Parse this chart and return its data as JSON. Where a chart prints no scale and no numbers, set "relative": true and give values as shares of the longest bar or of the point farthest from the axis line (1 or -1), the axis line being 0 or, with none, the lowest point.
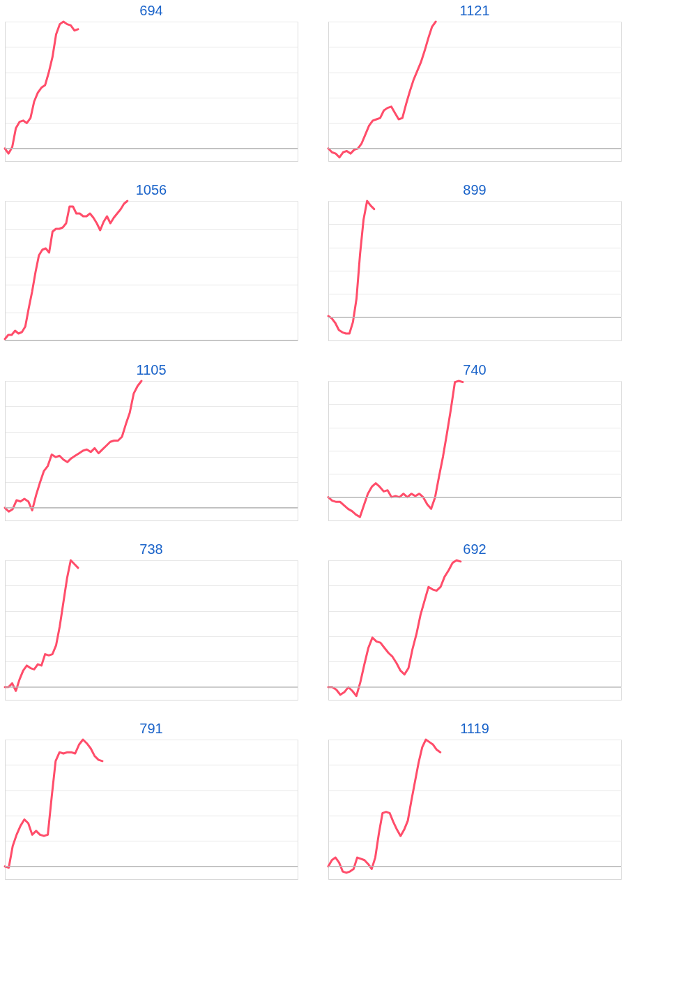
{
  "chart_data": [
    {
      "type": "line",
      "title": "694",
      "relative": true,
      "grid": "y",
      "color": "#ff4d6a",
      "ref_lines": [
        {
          "axis": "y",
          "value": 0,
          "color": "#bbbbbb"
        }
      ],
      "categories": [
        null,
        null,
        null,
        null,
        null,
        null,
        null,
        null,
        null,
        null,
        null,
        null,
        null,
        null,
        null,
        null,
        null,
        null,
        null,
        null,
        null,
        null,
        null,
        null,
        null,
        null,
        null,
        null,
        null,
        null,
        null,
        null,
        null,
        null,
        null,
        null,
        null,
        null,
        null,
        null,
        null,
        null,
        null,
        null,
        null,
        null,
        null,
        null,
        null,
        null,
        null,
        null,
        null,
        null,
        null,
        null,
        null,
        null,
        null,
        null,
        null,
        null,
        null,
        null,
        null,
        null,
        null,
        null,
        null,
        null,
        null,
        null,
        null,
        null,
        null,
        null,
        null,
        null,
        null,
        null,
        null
      ],
      "values": [
        0,
        -0.04,
        0.01,
        0.16,
        0.21,
        0.22,
        0.2,
        0.24,
        0.37,
        0.44,
        0.48,
        0.5,
        0.6,
        0.72,
        0.9,
        0.98,
        1,
        0.98,
        0.97,
        0.93,
        0.94,
        null,
        null,
        null,
        null,
        null,
        null,
        null,
        null,
        null,
        null,
        null,
        null,
        null,
        null,
        null,
        null,
        null,
        null,
        null,
        null,
        null,
        null,
        null,
        null,
        null,
        null,
        null,
        null,
        null,
        null,
        null,
        null,
        null,
        null,
        null,
        null,
        null,
        null,
        null,
        null,
        null,
        null,
        null,
        null,
        null,
        null,
        null,
        null,
        null,
        null,
        null,
        null,
        null,
        null,
        null,
        null,
        null,
        null,
        null,
        null
      ]
    },
    {
      "type": "line",
      "title": "1121",
      "relative": true,
      "grid": "y",
      "color": "#ff4d6a",
      "ref_lines": [
        {
          "axis": "y",
          "value": 0,
          "color": "#bbbbbb"
        }
      ],
      "categories": [
        null,
        null,
        null,
        null,
        null,
        null,
        null,
        null,
        null,
        null,
        null,
        null,
        null,
        null,
        null,
        null,
        null,
        null,
        null,
        null,
        null,
        null,
        null,
        null,
        null,
        null,
        null,
        null,
        null,
        null,
        null,
        null,
        null,
        null,
        null,
        null,
        null,
        null,
        null,
        null,
        null,
        null,
        null,
        null,
        null,
        null,
        null,
        null,
        null,
        null,
        null,
        null,
        null,
        null,
        null,
        null,
        null,
        null,
        null,
        null,
        null,
        null,
        null,
        null,
        null,
        null,
        null,
        null,
        null,
        null,
        null,
        null,
        null,
        null,
        null,
        null,
        null,
        null,
        null,
        null
      ],
      "values": [
        0,
        -0.03,
        -0.04,
        -0.07,
        -0.03,
        -0.02,
        -0.04,
        -0.01,
        0,
        0.04,
        0.11,
        0.18,
        0.22,
        0.23,
        0.24,
        0.3,
        0.32,
        0.33,
        0.28,
        0.23,
        0.24,
        0.35,
        0.45,
        0.54,
        0.61,
        0.68,
        0.77,
        0.87,
        0.96,
        1,
        null,
        null,
        null,
        null,
        null,
        null,
        null,
        null,
        null,
        null,
        null,
        null,
        null,
        null,
        null,
        null,
        null,
        null,
        null,
        null,
        null,
        null,
        null,
        null,
        null,
        null,
        null,
        null,
        null,
        null,
        null,
        null,
        null,
        null,
        null,
        null,
        null,
        null,
        null,
        null,
        null,
        null,
        null,
        null,
        null,
        null,
        null,
        null,
        null,
        null
      ]
    },
    {
      "type": "line",
      "title": "1056",
      "relative": true,
      "grid": "y",
      "color": "#ff4d6a",
      "ref_lines": [
        {
          "axis": "y",
          "value": 0,
          "color": "#bbbbbb"
        }
      ],
      "categories": [
        null,
        null,
        null,
        null,
        null,
        null,
        null,
        null,
        null,
        null,
        null,
        null,
        null,
        null,
        null,
        null,
        null,
        null,
        null,
        null,
        null,
        null,
        null,
        null,
        null,
        null,
        null,
        null,
        null,
        null,
        null,
        null,
        null,
        null,
        null,
        null,
        null,
        null,
        null,
        null,
        null,
        null,
        null,
        null,
        null,
        null,
        null,
        null,
        null,
        null,
        null,
        null,
        null,
        null,
        null,
        null,
        null,
        null,
        null,
        null,
        null,
        null,
        null,
        null,
        null,
        null,
        null,
        null,
        null,
        null,
        null,
        null,
        null,
        null,
        null,
        null,
        null,
        null,
        null,
        null,
        null,
        null,
        null,
        null,
        null,
        null,
        null
      ],
      "values": [
        0.01,
        0.04,
        0.04,
        0.07,
        0.05,
        0.06,
        0.1,
        0.23,
        0.35,
        0.49,
        0.61,
        0.65,
        0.66,
        0.63,
        0.78,
        0.8,
        0.8,
        0.81,
        0.84,
        0.96,
        0.96,
        0.91,
        0.91,
        0.89,
        0.89,
        0.91,
        0.88,
        0.84,
        0.79,
        0.85,
        0.89,
        0.84,
        0.88,
        0.91,
        0.94,
        0.98,
        1,
        null,
        null,
        null,
        null,
        null,
        null,
        null,
        null,
        null,
        null,
        null,
        null,
        null,
        null,
        null,
        null,
        null,
        null,
        null,
        null,
        null,
        null,
        null,
        null,
        null,
        null,
        null,
        null,
        null,
        null,
        null,
        null,
        null,
        null,
        null,
        null,
        null,
        null,
        null,
        null,
        null,
        null,
        null,
        null,
        null,
        null,
        null,
        null,
        null,
        null
      ]
    },
    {
      "type": "line",
      "title": "899",
      "relative": true,
      "grid": "y",
      "color": "#ff4d6a",
      "ref_lines": [
        {
          "axis": "y",
          "value": 0,
          "color": "#bbbbbb"
        }
      ],
      "categories": [
        null,
        null,
        null,
        null,
        null,
        null,
        null,
        null,
        null,
        null,
        null,
        null,
        null,
        null,
        null,
        null,
        null,
        null,
        null,
        null,
        null,
        null,
        null,
        null,
        null,
        null,
        null,
        null,
        null,
        null,
        null,
        null,
        null,
        null,
        null,
        null,
        null,
        null,
        null,
        null,
        null,
        null,
        null,
        null,
        null,
        null,
        null,
        null,
        null,
        null,
        null,
        null,
        null,
        null,
        null,
        null,
        null,
        null,
        null,
        null,
        null,
        null,
        null,
        null,
        null,
        null,
        null,
        null,
        null,
        null,
        null,
        null,
        null,
        null,
        null,
        null,
        null,
        null,
        null,
        null,
        null,
        null,
        null,
        null
      ],
      "values": [
        0.01,
        -0.01,
        -0.05,
        -0.11,
        -0.13,
        -0.14,
        -0.14,
        -0.04,
        0.16,
        0.54,
        0.84,
        1,
        0.96,
        0.93,
        null,
        null,
        null,
        null,
        null,
        null,
        null,
        null,
        null,
        null,
        null,
        null,
        null,
        null,
        null,
        null,
        null,
        null,
        null,
        null,
        null,
        null,
        null,
        null,
        null,
        null,
        null,
        null,
        null,
        null,
        null,
        null,
        null,
        null,
        null,
        null,
        null,
        null,
        null,
        null,
        null,
        null,
        null,
        null,
        null,
        null,
        null,
        null,
        null,
        null,
        null,
        null,
        null,
        null,
        null,
        null,
        null,
        null,
        null,
        null,
        null,
        null,
        null,
        null,
        null,
        null,
        null,
        null,
        null,
        null
      ]
    },
    {
      "type": "line",
      "title": "1105",
      "relative": true,
      "grid": "y",
      "color": "#ff4d6a",
      "ref_lines": [
        {
          "axis": "y",
          "value": 0,
          "color": "#bbbbbb"
        }
      ],
      "categories": [
        null,
        null,
        null,
        null,
        null,
        null,
        null,
        null,
        null,
        null,
        null,
        null,
        null,
        null,
        null,
        null,
        null,
        null,
        null,
        null,
        null,
        null,
        null,
        null,
        null,
        null,
        null,
        null,
        null,
        null,
        null,
        null,
        null,
        null,
        null,
        null,
        null,
        null,
        null,
        null,
        null,
        null,
        null,
        null,
        null,
        null,
        null,
        null,
        null,
        null,
        null,
        null,
        null,
        null,
        null,
        null,
        null,
        null,
        null,
        null,
        null,
        null,
        null,
        null,
        null,
        null,
        null,
        null,
        null,
        null,
        null,
        null,
        null,
        null,
        null,
        null
      ],
      "values": [
        0,
        -0.03,
        -0.01,
        0.06,
        0.05,
        0.07,
        0.05,
        -0.02,
        0.1,
        0.2,
        0.29,
        0.33,
        0.42,
        0.4,
        0.41,
        0.38,
        0.36,
        0.39,
        0.41,
        0.43,
        0.45,
        0.46,
        0.44,
        0.47,
        0.43,
        0.46,
        0.49,
        0.52,
        0.53,
        0.53,
        0.56,
        0.66,
        0.75,
        0.9,
        0.96,
        1,
        null,
        null,
        null,
        null,
        null,
        null,
        null,
        null,
        null,
        null,
        null,
        null,
        null,
        null,
        null,
        null,
        null,
        null,
        null,
        null,
        null,
        null,
        null,
        null,
        null,
        null,
        null,
        null,
        null,
        null,
        null,
        null,
        null,
        null,
        null,
        null,
        null,
        null,
        null,
        null
      ]
    },
    {
      "type": "line",
      "title": "740",
      "relative": true,
      "grid": "y",
      "color": "#ff4d6a",
      "ref_lines": [
        {
          "axis": "y",
          "value": 0,
          "color": "#bbbbbb"
        }
      ],
      "categories": [
        null,
        null,
        null,
        null,
        null,
        null,
        null,
        null,
        null,
        null,
        null,
        null,
        null,
        null,
        null,
        null,
        null,
        null,
        null,
        null,
        null,
        null,
        null,
        null,
        null,
        null,
        null,
        null,
        null,
        null,
        null,
        null,
        null,
        null,
        null,
        null,
        null,
        null,
        null,
        null,
        null,
        null,
        null,
        null,
        null,
        null,
        null,
        null,
        null,
        null,
        null,
        null,
        null,
        null,
        null,
        null,
        null,
        null,
        null,
        null,
        null,
        null,
        null,
        null,
        null,
        null,
        null,
        null,
        null,
        null,
        null,
        null,
        null,
        null,
        null
      ],
      "values": [
        0,
        -0.03,
        -0.04,
        -0.04,
        -0.07,
        -0.1,
        -0.12,
        -0.15,
        -0.17,
        -0.07,
        0.03,
        0.09,
        0.12,
        0.09,
        0.05,
        0.06,
        0,
        0.01,
        0,
        0.03,
        0,
        0.03,
        0.01,
        0.03,
        0,
        -0.06,
        -0.1,
        0,
        0.18,
        0.35,
        0.55,
        0.76,
        0.99,
        1,
        0.99,
        null,
        null,
        null,
        null,
        null,
        null,
        null,
        null,
        null,
        null,
        null,
        null,
        null,
        null,
        null,
        null,
        null,
        null,
        null,
        null,
        null,
        null,
        null,
        null,
        null,
        null,
        null,
        null,
        null,
        null,
        null,
        null,
        null,
        null,
        null,
        null,
        null,
        null,
        null,
        null
      ]
    },
    {
      "type": "line",
      "title": "738",
      "relative": true,
      "grid": "y",
      "color": "#ff4d6a",
      "ref_lines": [
        {
          "axis": "y",
          "value": 0,
          "color": "#bbbbbb"
        }
      ],
      "categories": [
        null,
        null,
        null,
        null,
        null,
        null,
        null,
        null,
        null,
        null,
        null,
        null,
        null,
        null,
        null,
        null,
        null,
        null,
        null,
        null,
        null,
        null,
        null,
        null,
        null,
        null,
        null,
        null,
        null,
        null,
        null,
        null,
        null,
        null,
        null,
        null,
        null,
        null,
        null,
        null,
        null,
        null,
        null,
        null,
        null,
        null,
        null,
        null,
        null,
        null,
        null,
        null,
        null,
        null,
        null,
        null,
        null,
        null,
        null,
        null,
        null,
        null,
        null,
        null,
        null,
        null,
        null,
        null,
        null,
        null,
        null,
        null,
        null,
        null,
        null,
        null,
        null,
        null,
        null,
        null,
        null
      ],
      "values": [
        0,
        0,
        0.03,
        -0.03,
        0.06,
        0.13,
        0.17,
        0.15,
        0.14,
        0.18,
        0.17,
        0.26,
        0.25,
        0.26,
        0.33,
        0.48,
        0.67,
        0.86,
        1,
        0.97,
        0.94,
        null,
        null,
        null,
        null,
        null,
        null,
        null,
        null,
        null,
        null,
        null,
        null,
        null,
        null,
        null,
        null,
        null,
        null,
        null,
        null,
        null,
        null,
        null,
        null,
        null,
        null,
        null,
        null,
        null,
        null,
        null,
        null,
        null,
        null,
        null,
        null,
        null,
        null,
        null,
        null,
        null,
        null,
        null,
        null,
        null,
        null,
        null,
        null,
        null,
        null,
        null,
        null,
        null,
        null,
        null,
        null,
        null,
        null,
        null,
        null
      ]
    },
    {
      "type": "line",
      "title": "692",
      "relative": true,
      "grid": "y",
      "color": "#ff4d6a",
      "ref_lines": [
        {
          "axis": "y",
          "value": 0,
          "color": "#bbbbbb"
        }
      ],
      "categories": [
        null,
        null,
        null,
        null,
        null,
        null,
        null,
        null,
        null,
        null,
        null,
        null,
        null,
        null,
        null,
        null,
        null,
        null,
        null,
        null,
        null,
        null,
        null,
        null,
        null,
        null,
        null,
        null,
        null,
        null,
        null,
        null,
        null,
        null,
        null,
        null,
        null,
        null,
        null,
        null,
        null,
        null,
        null,
        null,
        null,
        null,
        null,
        null,
        null,
        null,
        null,
        null,
        null,
        null,
        null,
        null,
        null,
        null,
        null,
        null,
        null,
        null,
        null,
        null,
        null,
        null,
        null,
        null,
        null,
        null,
        null,
        null,
        null,
        null
      ],
      "values": [
        0,
        0,
        -0.02,
        -0.06,
        -0.04,
        0,
        -0.03,
        -0.07,
        0.04,
        0.18,
        0.31,
        0.39,
        0.36,
        0.35,
        0.31,
        0.27,
        0.24,
        0.19,
        0.13,
        0.1,
        0.15,
        0.3,
        0.42,
        0.57,
        0.68,
        0.79,
        0.77,
        0.76,
        0.79,
        0.87,
        0.92,
        0.98,
        1,
        0.99,
        null,
        null,
        null,
        null,
        null,
        null,
        null,
        null,
        null,
        null,
        null,
        null,
        null,
        null,
        null,
        null,
        null,
        null,
        null,
        null,
        null,
        null,
        null,
        null,
        null,
        null,
        null,
        null,
        null,
        null,
        null,
        null,
        null,
        null,
        null,
        null,
        null,
        null,
        null,
        null
      ]
    },
    {
      "type": "line",
      "title": "791",
      "relative": true,
      "grid": "y",
      "color": "#ff4d6a",
      "ref_lines": [
        {
          "axis": "y",
          "value": 0,
          "color": "#bbbbbb"
        }
      ],
      "categories": [
        null,
        null,
        null,
        null,
        null,
        null,
        null,
        null,
        null,
        null,
        null,
        null,
        null,
        null,
        null,
        null,
        null,
        null,
        null,
        null,
        null,
        null,
        null,
        null,
        null,
        null,
        null,
        null,
        null,
        null,
        null,
        null,
        null,
        null,
        null,
        null,
        null,
        null,
        null,
        null,
        null,
        null,
        null,
        null,
        null,
        null,
        null,
        null,
        null,
        null,
        null,
        null,
        null,
        null,
        null,
        null,
        null,
        null,
        null,
        null,
        null,
        null,
        null,
        null,
        null,
        null,
        null,
        null,
        null,
        null,
        null,
        null,
        null,
        null,
        null,
        null
      ],
      "values": [
        0,
        -0.01,
        0.16,
        0.25,
        0.32,
        0.37,
        0.34,
        0.25,
        0.28,
        0.25,
        0.24,
        0.25,
        0.55,
        0.83,
        0.9,
        0.89,
        0.9,
        0.9,
        0.89,
        0.96,
        1,
        0.97,
        0.93,
        0.87,
        0.84,
        0.83,
        null,
        null,
        null,
        null,
        null,
        null,
        null,
        null,
        null,
        null,
        null,
        null,
        null,
        null,
        null,
        null,
        null,
        null,
        null,
        null,
        null,
        null,
        null,
        null,
        null,
        null,
        null,
        null,
        null,
        null,
        null,
        null,
        null,
        null,
        null,
        null,
        null,
        null,
        null,
        null,
        null,
        null,
        null,
        null,
        null,
        null,
        null,
        null,
        null,
        null
      ]
    },
    {
      "type": "line",
      "title": "1119",
      "relative": true,
      "grid": "y",
      "color": "#ff4d6a",
      "ref_lines": [
        {
          "axis": "y",
          "value": 0,
          "color": "#bbbbbb"
        }
      ],
      "categories": [
        null,
        null,
        null,
        null,
        null,
        null,
        null,
        null,
        null,
        null,
        null,
        null,
        null,
        null,
        null,
        null,
        null,
        null,
        null,
        null,
        null,
        null,
        null,
        null,
        null,
        null,
        null,
        null,
        null,
        null,
        null,
        null,
        null,
        null,
        null,
        null,
        null,
        null,
        null,
        null,
        null,
        null,
        null,
        null,
        null,
        null,
        null,
        null,
        null,
        null,
        null,
        null,
        null,
        null,
        null,
        null,
        null,
        null,
        null,
        null,
        null,
        null,
        null,
        null,
        null,
        null,
        null,
        null,
        null,
        null,
        null,
        null,
        null,
        null,
        null,
        null,
        null,
        null,
        null,
        null,
        null,
        null
      ],
      "values": [
        0,
        0.05,
        0.07,
        0.03,
        -0.04,
        -0.05,
        -0.04,
        -0.02,
        0.07,
        0.06,
        0.05,
        0.02,
        -0.02,
        0.07,
        0.26,
        0.42,
        0.43,
        0.42,
        0.35,
        0.29,
        0.24,
        0.29,
        0.36,
        0.52,
        0.67,
        0.82,
        0.94,
        1,
        0.98,
        0.96,
        0.92,
        0.9,
        null,
        null,
        null,
        null,
        null,
        null,
        null,
        null,
        null,
        null,
        null,
        null,
        null,
        null,
        null,
        null,
        null,
        null,
        null,
        null,
        null,
        null,
        null,
        null,
        null,
        null,
        null,
        null,
        null,
        null,
        null,
        null,
        null,
        null,
        null,
        null,
        null,
        null,
        null,
        null,
        null,
        null,
        null,
        null,
        null,
        null,
        null,
        null,
        null,
        null
      ]
    }
  ]
}
